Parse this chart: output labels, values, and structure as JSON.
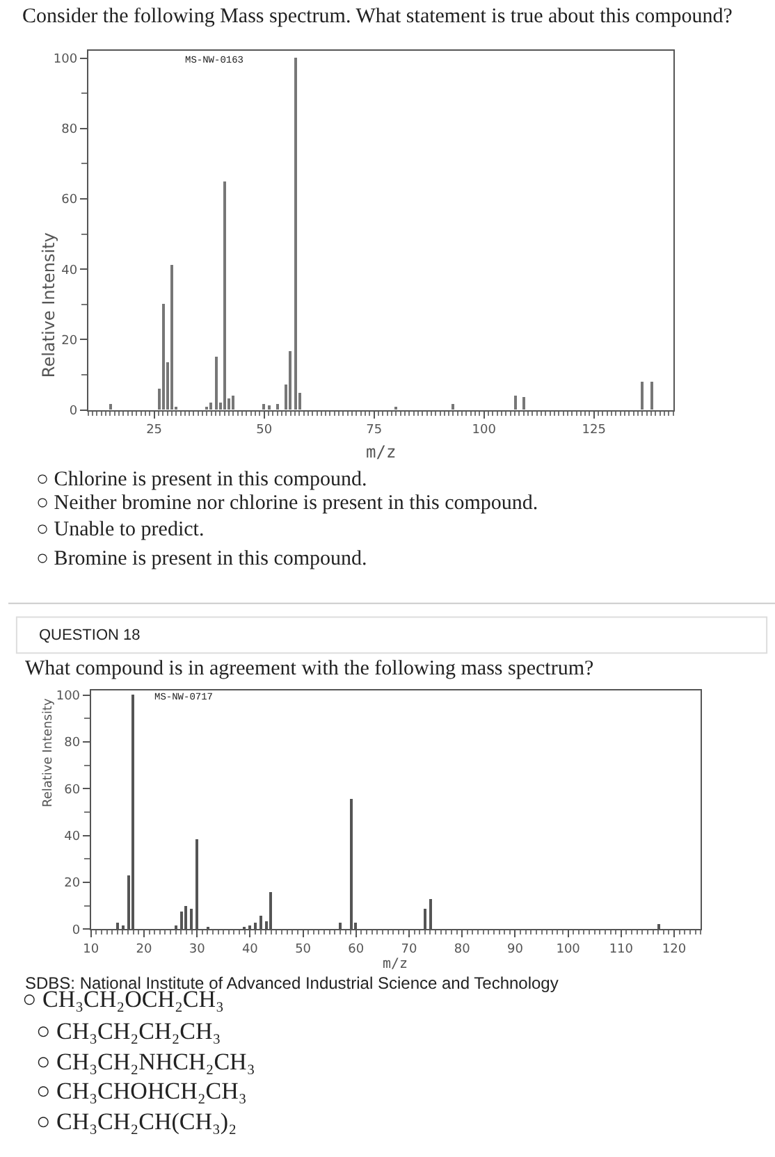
{
  "chart_data": [
    {
      "type": "bar",
      "title": "Consider the following Mass spectrum. What statement is true about this compound?",
      "xlabel": "m/z",
      "ylabel": "Relative Intensity",
      "x": [
        15,
        26,
        27,
        28,
        29,
        30,
        37,
        38,
        39,
        40,
        41,
        42,
        43,
        50,
        51,
        53,
        55,
        56,
        57,
        58,
        80,
        93,
        107,
        109,
        136,
        138
      ],
      "values": [
        1.5,
        5.8,
        30,
        13.6,
        41,
        1,
        1,
        2,
        15,
        2.2,
        64.7,
        3.2,
        4,
        1.7,
        1.2,
        1.5,
        7.2,
        16.5,
        100,
        4.8,
        1,
        1.5,
        3.9,
        3.5,
        8,
        8
      ],
      "color": "#777777",
      "xlim": [
        10,
        143
      ],
      "xticks": [
        25,
        50,
        75,
        100,
        125
      ],
      "ylim": [
        0,
        102
      ],
      "yticks": [
        0,
        20,
        40,
        60,
        80,
        100
      ],
      "annotations": [
        "MS-NW-0163",
        "○ Chlorine is present in this compound.",
        "○ Neither bromine nor chlorine is present in this compound.",
        "○ Unable to predict.",
        "○ Bromine is present in this compound."
      ]
    },
    {
      "type": "bar",
      "title": "What compound is in agreement with the following mass spectrum?",
      "xlabel": "m/z",
      "ylabel": "Relative Intensity",
      "x": [
        15,
        16,
        17,
        18,
        26,
        27,
        28,
        29,
        30,
        32,
        39,
        40,
        41,
        42,
        43,
        44,
        57,
        59,
        60,
        73,
        74,
        117
      ],
      "values": [
        3,
        1.6,
        23,
        100,
        1.5,
        7.5,
        9.7,
        8.5,
        38.2,
        1,
        1,
        1.5,
        3,
        5.7,
        3.6,
        16,
        3,
        55.4,
        2.6,
        9,
        12.9,
        2.5
      ],
      "color": "#555555",
      "xlim": [
        10,
        125
      ],
      "xticks": [
        10,
        20,
        30,
        40,
        50,
        60,
        70,
        80,
        90,
        100,
        110,
        120
      ],
      "ylim": [
        0,
        102
      ],
      "yticks": [
        0,
        20,
        40,
        60,
        80,
        100
      ],
      "annotations": [
        "QUESTION 18",
        "MS-NW-0717",
        "SDBS: National Institute of Advanced Industrial Science and Technology",
        "○ CH₃CH₂OCH₂CH₃",
        "○ CH₃CH₂CH₂CH₃",
        "○ CH₃CH₂NHCH₂CH₃",
        "○ CH₃CHOHCH₂CH₃",
        "○ CH₃CH₂CH(CH₃)₂"
      ]
    }
  ]
}
